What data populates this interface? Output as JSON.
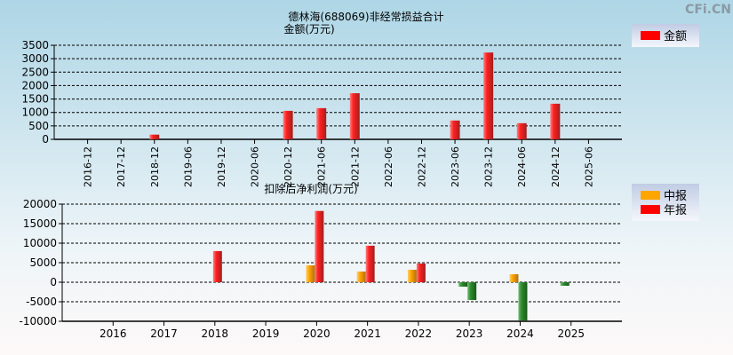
{
  "watermark": "CFi.CN",
  "chart_data": [
    {
      "type": "bar",
      "title": "德林海(688069)非经常损益合计",
      "ylabel": "金额(万元)",
      "categories": [
        "2016-12",
        "2017-12",
        "2018-12",
        "2019-06",
        "2019-12",
        "2020-06",
        "2020-12",
        "2021-06",
        "2021-12",
        "2022-06",
        "2022-12",
        "2023-06",
        "2023-12",
        "2024-06",
        "2024-12",
        "2025-06"
      ],
      "series": [
        {
          "name": "金额",
          "color": "#ff0000",
          "values": [
            null,
            null,
            175,
            null,
            null,
            null,
            1060,
            1160,
            1715,
            null,
            null,
            700,
            3230,
            600,
            1325,
            null
          ]
        }
      ],
      "ylim": [
        0,
        3500
      ],
      "yticks": [
        0,
        500,
        1000,
        1500,
        2000,
        2500,
        3000,
        3500
      ],
      "grid": true,
      "legend": "top-right"
    },
    {
      "type": "bar",
      "title": "扣除后净利润(万元)",
      "categories": [
        "2016",
        "2017",
        "2018",
        "2019",
        "2020",
        "2021",
        "2022",
        "2023",
        "2024",
        "2025"
      ],
      "series": [
        {
          "name": "中报",
          "color": "#ffa500",
          "values": [
            null,
            null,
            null,
            null,
            4330,
            2740,
            3190,
            -1140,
            2050,
            -910
          ]
        },
        {
          "name": "年报",
          "color": "#ff0000",
          "values": [
            null,
            null,
            7980,
            null,
            18250,
            9350,
            4790,
            -4560,
            -9800,
            null
          ]
        }
      ],
      "negative_color": "#2e8b2e",
      "ylim": [
        -10000,
        20000
      ],
      "yticks": [
        -10000,
        -5000,
        0,
        5000,
        10000,
        15000,
        20000
      ],
      "grid": true,
      "legend": "top-right"
    }
  ]
}
